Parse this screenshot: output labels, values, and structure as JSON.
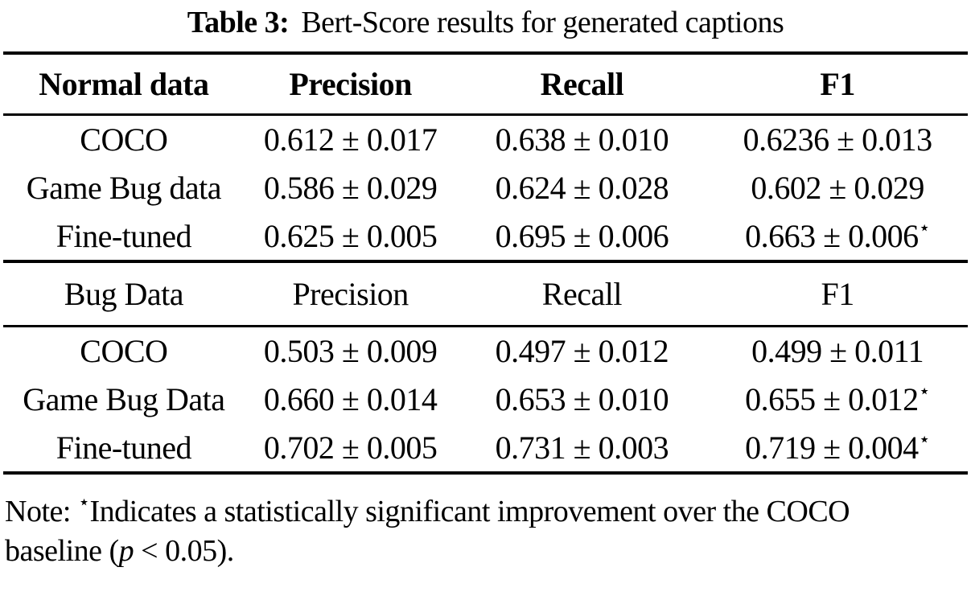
{
  "title": {
    "label": "Table 3:",
    "text": "Bert-Score results for generated captions"
  },
  "table": {
    "sections": [
      {
        "header": [
          "Normal data",
          "Precision",
          "Recall",
          "F1"
        ],
        "rows": [
          [
            {
              "v": "COCO",
              "sup": ""
            },
            {
              "v": "0.612 ± 0.017",
              "sup": ""
            },
            {
              "v": "0.638 ± 0.010",
              "sup": ""
            },
            {
              "v": "0.6236 ± 0.013",
              "sup": ""
            }
          ],
          [
            {
              "v": "Game Bug data",
              "sup": ""
            },
            {
              "v": "0.586 ± 0.029",
              "sup": ""
            },
            {
              "v": "0.624 ± 0.028",
              "sup": ""
            },
            {
              "v": "0.602 ± 0.029",
              "sup": ""
            }
          ],
          [
            {
              "v": "Fine-tuned",
              "sup": ""
            },
            {
              "v": "0.625 ± 0.005",
              "sup": ""
            },
            {
              "v": "0.695 ± 0.006",
              "sup": ""
            },
            {
              "v": "0.663 ± 0.006",
              "sup": "⋆"
            }
          ]
        ]
      },
      {
        "header": [
          "Bug Data",
          "Precision",
          "Recall",
          "F1"
        ],
        "rows": [
          [
            {
              "v": "COCO",
              "sup": ""
            },
            {
              "v": "0.503 ± 0.009",
              "sup": ""
            },
            {
              "v": "0.497 ± 0.012",
              "sup": ""
            },
            {
              "v": "0.499 ± 0.011",
              "sup": ""
            }
          ],
          [
            {
              "v": "Game Bug Data",
              "sup": ""
            },
            {
              "v": "0.660 ± 0.014",
              "sup": ""
            },
            {
              "v": "0.653 ± 0.010",
              "sup": ""
            },
            {
              "v": "0.655 ± 0.012",
              "sup": "⋆"
            }
          ],
          [
            {
              "v": "Fine-tuned",
              "sup": ""
            },
            {
              "v": "0.702 ± 0.005",
              "sup": ""
            },
            {
              "v": "0.731 ± 0.003",
              "sup": ""
            },
            {
              "v": "0.719 ± 0.004",
              "sup": "⋆"
            }
          ]
        ]
      }
    ]
  },
  "note": {
    "prefix": "Note: ",
    "star": "⋆",
    "line1": "Indicates a statistically significant improvement over the COCO",
    "line2_pre": "baseline (",
    "p_symbol": "p",
    "line2_post": " < 0.05)."
  },
  "colors": {
    "text": "#000000",
    "background": "#ffffff",
    "rule": "#000000"
  }
}
